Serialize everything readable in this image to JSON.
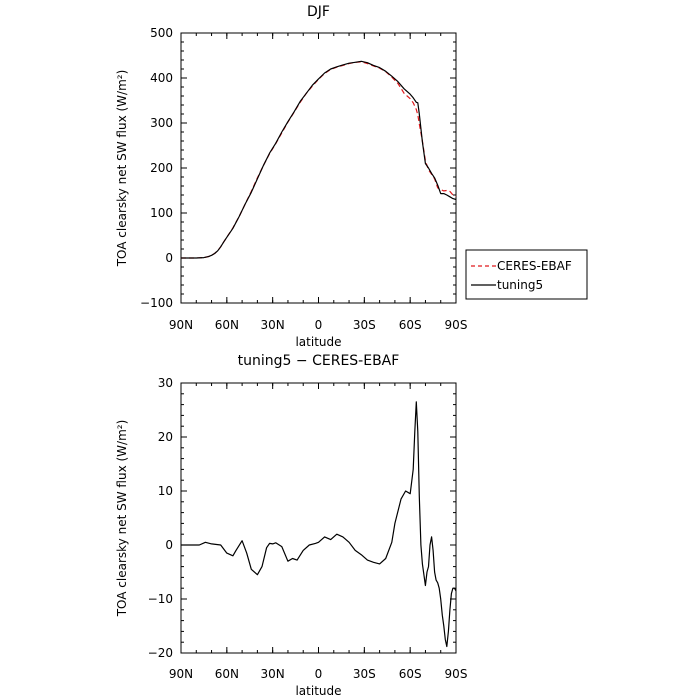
{
  "chart_data": [
    {
      "type": "line",
      "title": "DJF",
      "xlabel": "latitude",
      "ylabel": "TOA clearsky net SW flux (W/m²)",
      "xlim": [
        90,
        -90
      ],
      "ylim": [
        -100,
        500
      ],
      "yticks": [
        -100,
        0,
        100,
        200,
        300,
        400,
        500
      ],
      "xticks": [
        90,
        60,
        30,
        0,
        -30,
        -60,
        -90
      ],
      "xtick_labels": [
        "90N",
        "60N",
        "30N",
        "0",
        "30S",
        "60S",
        "90S"
      ],
      "legend_position": "right, outside plot",
      "series": [
        {
          "name": "CERES-EBAF",
          "color": "#e0191c",
          "dash": "dashed",
          "x": [
            90,
            80,
            75,
            72,
            70,
            68,
            66,
            64,
            62,
            60,
            56,
            52,
            48,
            44,
            40,
            36,
            32,
            28,
            24,
            20,
            16,
            12,
            8,
            4,
            0,
            -4,
            -8,
            -12,
            -16,
            -20,
            -24,
            -28,
            -32,
            -36,
            -40,
            -44,
            -48,
            -52,
            -56,
            -60,
            -62,
            -64,
            -65,
            -66,
            -68,
            -70,
            -72,
            -74,
            -76,
            -78,
            -80,
            -82,
            -84,
            -86,
            -88,
            -90
          ],
          "y": [
            0,
            0,
            1,
            3,
            6,
            10,
            16,
            25,
            36,
            46,
            67,
            92,
            120,
            148,
            178,
            206,
            232,
            254,
            278,
            302,
            324,
            346,
            366,
            382,
            397,
            410,
            419,
            424,
            428,
            432,
            435,
            436,
            432,
            427,
            422,
            414,
            402,
            388,
            366,
            354,
            345,
            330,
            318,
            298,
            260,
            216,
            196,
            186,
            176,
            156,
            152,
            149,
            150,
            148,
            140,
            137
          ]
        },
        {
          "name": "tuning5",
          "color": "#000000",
          "dash": "solid",
          "x": [
            90,
            80,
            75,
            72,
            70,
            68,
            66,
            64,
            62,
            60,
            56,
            52,
            48,
            44,
            40,
            36,
            32,
            28,
            24,
            20,
            16,
            12,
            8,
            4,
            0,
            -4,
            -8,
            -12,
            -16,
            -20,
            -24,
            -28,
            -32,
            -36,
            -40,
            -44,
            -48,
            -52,
            -56,
            -60,
            -62,
            -64,
            -65,
            -66,
            -68,
            -70,
            -72,
            -74,
            -76,
            -78,
            -80,
            -82,
            -84,
            -86,
            -88,
            -90
          ],
          "y": [
            0,
            0,
            1,
            3,
            6,
            10,
            16,
            25,
            36,
            46,
            66,
            92,
            120,
            146,
            176,
            206,
            233,
            255,
            280,
            303,
            325,
            348,
            366,
            384,
            398,
            411,
            420,
            425,
            429,
            433,
            435,
            437,
            434,
            428,
            423,
            415,
            404,
            392,
            376,
            364,
            356,
            346,
            345,
            320,
            258,
            210,
            200,
            188,
            178,
            162,
            143,
            143,
            140,
            136,
            132,
            130
          ]
        }
      ]
    },
    {
      "type": "line",
      "title": "tuning5 − CERES-EBAF",
      "xlabel": "latitude",
      "ylabel": "TOA clearsky net SW flux (W/m²)",
      "xlim": [
        90,
        -90
      ],
      "ylim": [
        -20,
        30
      ],
      "yticks": [
        -20,
        -10,
        0,
        10,
        20,
        30
      ],
      "xticks": [
        90,
        60,
        30,
        0,
        -30,
        -60,
        -90
      ],
      "xtick_labels": [
        "90N",
        "60N",
        "30N",
        "0",
        "30S",
        "60S",
        "90S"
      ],
      "series": [
        {
          "name": "",
          "color": "#000000",
          "dash": "solid",
          "x": [
            90,
            78,
            74,
            70,
            64,
            60,
            56,
            54,
            50,
            47,
            44,
            40,
            37,
            34,
            32,
            30,
            28,
            24,
            20,
            17,
            14,
            10,
            6,
            2,
            0,
            -4,
            -8,
            -12,
            -16,
            -20,
            -24,
            -28,
            -32,
            -36,
            -40,
            -44,
            -48,
            -50,
            -54,
            -57,
            -60,
            -62,
            -63,
            -64,
            -65,
            -66,
            -67,
            -68,
            -69,
            -70,
            -71,
            -72,
            -73,
            -74,
            -75,
            -76,
            -77,
            -78,
            -79,
            -80,
            -81,
            -82,
            -83,
            -84,
            -85,
            -86,
            -87,
            -88,
            -89,
            -90
          ],
          "y": [
            0,
            0,
            0.5,
            0.2,
            0,
            -1.5,
            -2.0,
            -1.0,
            0.8,
            -1.5,
            -4.5,
            -5.5,
            -4.0,
            -0.5,
            0.3,
            0.2,
            0.4,
            -0.3,
            -3.0,
            -2.5,
            -2.8,
            -1.0,
            0.0,
            0.3,
            0.5,
            1.5,
            1.0,
            2.0,
            1.5,
            0.5,
            -1.0,
            -1.8,
            -2.8,
            -3.2,
            -3.5,
            -2.5,
            0.5,
            4.0,
            8.5,
            10.0,
            9.5,
            14.0,
            21.0,
            26.5,
            21.0,
            9.0,
            0.0,
            -3.5,
            -5.5,
            -7.5,
            -5.0,
            -4.0,
            0.0,
            1.5,
            -1.0,
            -5.0,
            -6.5,
            -7.0,
            -8.0,
            -10.0,
            -13.0,
            -15.0,
            -17.5,
            -18.8,
            -16.0,
            -12.0,
            -9.0,
            -8.0,
            -8.0,
            -8.5
          ]
        }
      ]
    }
  ]
}
